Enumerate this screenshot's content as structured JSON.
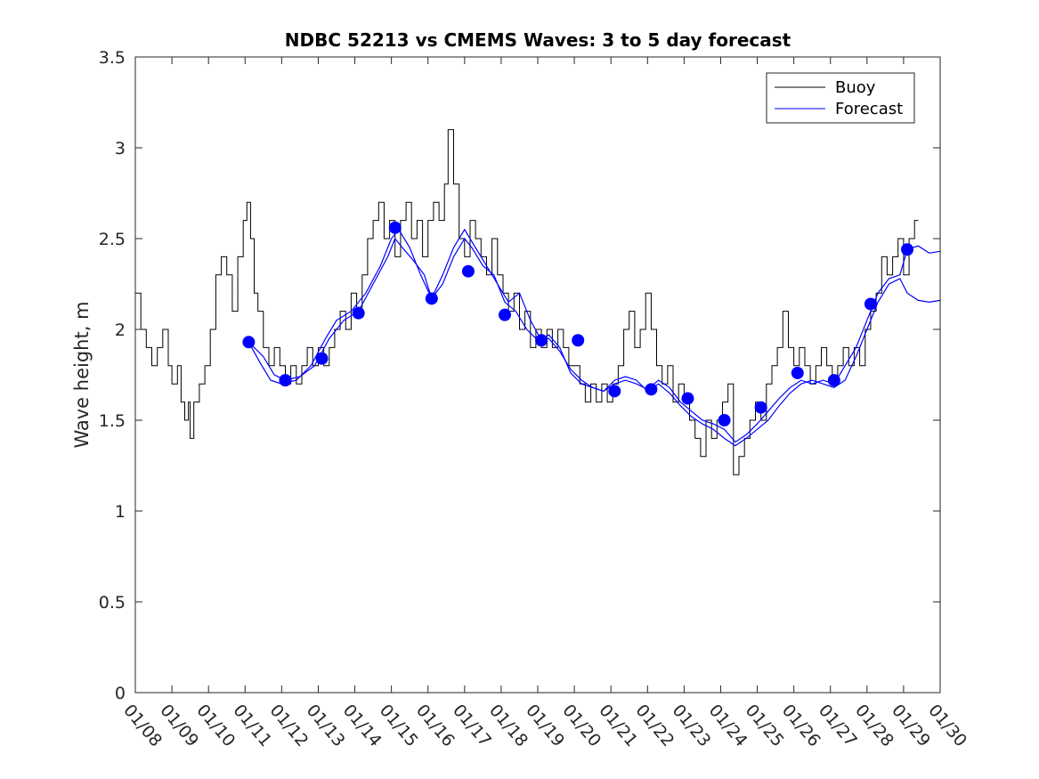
{
  "chart_data": {
    "type": "line",
    "title": "NDBC 52213 vs CMEMS Waves: 3 to 5 day forecast",
    "xlabel": "",
    "ylabel": "Wave height, m",
    "xlim": [
      0,
      22
    ],
    "ylim": [
      0,
      3.5
    ],
    "x_ticks": [
      "01/08",
      "01/09",
      "01/10",
      "01/11",
      "01/12",
      "01/13",
      "01/14",
      "01/15",
      "01/16",
      "01/17",
      "01/18",
      "01/19",
      "01/20",
      "01/21",
      "01/22",
      "01/23",
      "01/24",
      "01/25",
      "01/26",
      "01/27",
      "01/28",
      "01/29",
      "01/30"
    ],
    "y_ticks": [
      "0",
      "0.5",
      "1",
      "1.5",
      "2",
      "2.5",
      "3",
      "3.5"
    ],
    "grid": false,
    "legend": {
      "placement": "top-right",
      "entries": [
        "Buoy",
        "Forecast"
      ]
    },
    "colors": {
      "buoy": "#000000",
      "forecast": "#0000ff"
    },
    "series": [
      {
        "name": "Buoy",
        "x_unit": "days after 01/08 00:00",
        "points": [
          [
            0.0,
            2.2
          ],
          [
            0.15,
            2.0
          ],
          [
            0.3,
            1.9
          ],
          [
            0.45,
            1.8
          ],
          [
            0.6,
            1.9
          ],
          [
            0.75,
            2.0
          ],
          [
            0.9,
            1.8
          ],
          [
            1.0,
            1.7
          ],
          [
            1.15,
            1.8
          ],
          [
            1.25,
            1.6
          ],
          [
            1.35,
            1.5
          ],
          [
            1.45,
            1.6
          ],
          [
            1.5,
            1.4
          ],
          [
            1.6,
            1.6
          ],
          [
            1.75,
            1.7
          ],
          [
            1.9,
            1.8
          ],
          [
            2.05,
            2.0
          ],
          [
            2.2,
            2.3
          ],
          [
            2.35,
            2.4
          ],
          [
            2.5,
            2.3
          ],
          [
            2.65,
            2.1
          ],
          [
            2.8,
            2.4
          ],
          [
            2.95,
            2.6
          ],
          [
            3.05,
            2.7
          ],
          [
            3.15,
            2.5
          ],
          [
            3.25,
            2.2
          ],
          [
            3.35,
            2.1
          ],
          [
            3.5,
            1.9
          ],
          [
            3.65,
            1.8
          ],
          [
            3.8,
            1.9
          ],
          [
            3.95,
            1.8
          ],
          [
            4.1,
            1.7
          ],
          [
            4.25,
            1.8
          ],
          [
            4.4,
            1.7
          ],
          [
            4.55,
            1.8
          ],
          [
            4.7,
            1.9
          ],
          [
            4.85,
            1.8
          ],
          [
            5.0,
            1.9
          ],
          [
            5.15,
            1.8
          ],
          [
            5.3,
            1.9
          ],
          [
            5.45,
            2.0
          ],
          [
            5.6,
            2.1
          ],
          [
            5.75,
            2.0
          ],
          [
            5.9,
            2.2
          ],
          [
            6.05,
            2.1
          ],
          [
            6.2,
            2.3
          ],
          [
            6.35,
            2.5
          ],
          [
            6.5,
            2.6
          ],
          [
            6.65,
            2.7
          ],
          [
            6.8,
            2.5
          ],
          [
            6.95,
            2.6
          ],
          [
            7.1,
            2.4
          ],
          [
            7.25,
            2.6
          ],
          [
            7.4,
            2.7
          ],
          [
            7.55,
            2.5
          ],
          [
            7.7,
            2.6
          ],
          [
            7.85,
            2.4
          ],
          [
            8.0,
            2.6
          ],
          [
            8.15,
            2.7
          ],
          [
            8.3,
            2.6
          ],
          [
            8.45,
            2.8
          ],
          [
            8.55,
            3.1
          ],
          [
            8.7,
            2.8
          ],
          [
            8.85,
            2.5
          ],
          [
            9.0,
            2.4
          ],
          [
            9.15,
            2.6
          ],
          [
            9.3,
            2.5
          ],
          [
            9.45,
            2.4
          ],
          [
            9.6,
            2.3
          ],
          [
            9.75,
            2.5
          ],
          [
            9.9,
            2.3
          ],
          [
            10.05,
            2.2
          ],
          [
            10.2,
            2.1
          ],
          [
            10.35,
            2.2
          ],
          [
            10.5,
            2.0
          ],
          [
            10.65,
            2.1
          ],
          [
            10.8,
            1.9
          ],
          [
            10.95,
            2.0
          ],
          [
            11.1,
            1.9
          ],
          [
            11.25,
            2.0
          ],
          [
            11.4,
            1.9
          ],
          [
            11.55,
            2.0
          ],
          [
            11.7,
            1.9
          ],
          [
            11.85,
            1.8
          ],
          [
            12.0,
            1.8
          ],
          [
            12.15,
            1.7
          ],
          [
            12.3,
            1.6
          ],
          [
            12.45,
            1.7
          ],
          [
            12.6,
            1.6
          ],
          [
            12.75,
            1.7
          ],
          [
            12.9,
            1.6
          ],
          [
            13.05,
            1.7
          ],
          [
            13.2,
            1.8
          ],
          [
            13.35,
            2.0
          ],
          [
            13.5,
            2.1
          ],
          [
            13.65,
            1.9
          ],
          [
            13.8,
            2.0
          ],
          [
            13.95,
            2.2
          ],
          [
            14.1,
            2.0
          ],
          [
            14.25,
            1.8
          ],
          [
            14.4,
            1.7
          ],
          [
            14.55,
            1.8
          ],
          [
            14.7,
            1.6
          ],
          [
            14.85,
            1.7
          ],
          [
            15.0,
            1.6
          ],
          [
            15.15,
            1.5
          ],
          [
            15.3,
            1.4
          ],
          [
            15.45,
            1.3
          ],
          [
            15.6,
            1.5
          ],
          [
            15.75,
            1.4
          ],
          [
            15.9,
            1.5
          ],
          [
            16.05,
            1.6
          ],
          [
            16.2,
            1.7
          ],
          [
            16.35,
            1.2
          ],
          [
            16.5,
            1.3
          ],
          [
            16.65,
            1.4
          ],
          [
            16.8,
            1.5
          ],
          [
            16.95,
            1.6
          ],
          [
            17.1,
            1.5
          ],
          [
            17.25,
            1.7
          ],
          [
            17.4,
            1.8
          ],
          [
            17.55,
            1.9
          ],
          [
            17.7,
            2.1
          ],
          [
            17.85,
            1.9
          ],
          [
            18.0,
            1.8
          ],
          [
            18.15,
            1.9
          ],
          [
            18.3,
            1.8
          ],
          [
            18.45,
            1.7
          ],
          [
            18.6,
            1.8
          ],
          [
            18.75,
            1.9
          ],
          [
            18.9,
            1.8
          ],
          [
            19.05,
            1.7
          ],
          [
            19.2,
            1.8
          ],
          [
            19.35,
            1.9
          ],
          [
            19.5,
            1.8
          ],
          [
            19.65,
            1.9
          ],
          [
            19.8,
            1.8
          ],
          [
            19.95,
            2.0
          ],
          [
            20.1,
            2.1
          ],
          [
            20.25,
            2.2
          ],
          [
            20.4,
            2.4
          ],
          [
            20.55,
            2.3
          ],
          [
            20.7,
            2.4
          ],
          [
            20.85,
            2.5
          ],
          [
            21.0,
            2.3
          ],
          [
            21.15,
            2.5
          ],
          [
            21.3,
            2.6
          ],
          [
            21.4,
            2.6
          ]
        ]
      },
      {
        "name": "Forecast",
        "x_unit": "days after 01/08 00:00",
        "points": [
          [
            3.1,
            1.93
          ],
          [
            3.5,
            1.85
          ],
          [
            3.8,
            1.75
          ],
          [
            4.1,
            1.72
          ],
          [
            4.5,
            1.74
          ],
          [
            4.9,
            1.8
          ],
          [
            5.3,
            1.95
          ],
          [
            5.7,
            2.05
          ],
          [
            6.1,
            2.1
          ],
          [
            6.5,
            2.25
          ],
          [
            6.9,
            2.4
          ],
          [
            7.1,
            2.5
          ],
          [
            7.3,
            2.45
          ],
          [
            7.6,
            2.38
          ],
          [
            7.9,
            2.3
          ],
          [
            8.1,
            2.17
          ],
          [
            8.4,
            2.25
          ],
          [
            8.7,
            2.4
          ],
          [
            9.0,
            2.5
          ],
          [
            9.2,
            2.45
          ],
          [
            9.5,
            2.35
          ],
          [
            9.8,
            2.3
          ],
          [
            10.1,
            2.15
          ],
          [
            10.4,
            2.1
          ],
          [
            10.7,
            2.0
          ],
          [
            11.0,
            1.94
          ],
          [
            11.3,
            1.95
          ],
          [
            11.6,
            1.88
          ],
          [
            11.9,
            1.78
          ],
          [
            12.2,
            1.72
          ],
          [
            12.5,
            1.68
          ],
          [
            12.8,
            1.66
          ],
          [
            13.1,
            1.7
          ],
          [
            13.4,
            1.72
          ],
          [
            13.7,
            1.7
          ],
          [
            14.0,
            1.67
          ],
          [
            14.3,
            1.72
          ],
          [
            14.6,
            1.68
          ],
          [
            14.9,
            1.6
          ],
          [
            15.2,
            1.55
          ],
          [
            15.5,
            1.5
          ],
          [
            15.8,
            1.48
          ],
          [
            16.1,
            1.45
          ],
          [
            16.4,
            1.38
          ],
          [
            16.7,
            1.42
          ],
          [
            17.0,
            1.48
          ],
          [
            17.3,
            1.55
          ],
          [
            17.6,
            1.62
          ],
          [
            17.9,
            1.68
          ],
          [
            18.2,
            1.72
          ],
          [
            18.5,
            1.7
          ],
          [
            18.8,
            1.72
          ],
          [
            19.1,
            1.7
          ],
          [
            19.4,
            1.8
          ],
          [
            19.7,
            1.9
          ],
          [
            20.0,
            2.05
          ],
          [
            20.3,
            2.2
          ],
          [
            20.6,
            2.28
          ],
          [
            20.9,
            2.3
          ],
          [
            21.1,
            2.44
          ],
          [
            21.4,
            2.46
          ],
          [
            21.7,
            2.42
          ],
          [
            22.0,
            2.43
          ]
        ]
      },
      {
        "name": "",
        "x_unit": "days after 01/08 00:00",
        "points": [
          [
            3.1,
            1.93
          ],
          [
            3.4,
            1.82
          ],
          [
            3.7,
            1.72
          ],
          [
            4.0,
            1.7
          ],
          [
            4.4,
            1.72
          ],
          [
            4.8,
            1.8
          ],
          [
            5.2,
            1.95
          ],
          [
            5.5,
            2.05
          ],
          [
            5.9,
            2.1
          ],
          [
            6.3,
            2.2
          ],
          [
            6.7,
            2.35
          ],
          [
            7.0,
            2.5
          ],
          [
            7.2,
            2.55
          ],
          [
            7.5,
            2.45
          ],
          [
            7.8,
            2.3
          ],
          [
            8.1,
            2.17
          ],
          [
            8.4,
            2.3
          ],
          [
            8.7,
            2.45
          ],
          [
            9.0,
            2.55
          ],
          [
            9.3,
            2.45
          ],
          [
            9.6,
            2.35
          ],
          [
            9.9,
            2.25
          ],
          [
            10.2,
            2.15
          ],
          [
            10.5,
            2.2
          ],
          [
            10.8,
            2.05
          ],
          [
            11.1,
            1.94
          ],
          [
            11.3,
            1.97
          ],
          [
            11.6,
            1.9
          ],
          [
            11.9,
            1.76
          ],
          [
            12.2,
            1.7
          ],
          [
            12.5,
            1.68
          ],
          [
            12.8,
            1.66
          ],
          [
            13.1,
            1.72
          ],
          [
            13.4,
            1.74
          ],
          [
            13.7,
            1.72
          ],
          [
            14.0,
            1.66
          ],
          [
            14.3,
            1.7
          ],
          [
            14.6,
            1.65
          ],
          [
            14.9,
            1.58
          ],
          [
            15.2,
            1.52
          ],
          [
            15.5,
            1.48
          ],
          [
            15.8,
            1.45
          ],
          [
            16.1,
            1.4
          ],
          [
            16.4,
            1.36
          ],
          [
            16.7,
            1.4
          ],
          [
            17.0,
            1.45
          ],
          [
            17.3,
            1.5
          ],
          [
            17.6,
            1.58
          ],
          [
            17.9,
            1.65
          ],
          [
            18.2,
            1.7
          ],
          [
            18.5,
            1.72
          ],
          [
            18.8,
            1.7
          ],
          [
            19.1,
            1.68
          ],
          [
            19.4,
            1.72
          ],
          [
            19.7,
            1.85
          ],
          [
            20.0,
            2.0
          ],
          [
            20.3,
            2.15
          ],
          [
            20.6,
            2.25
          ],
          [
            20.9,
            2.28
          ],
          [
            21.1,
            2.2
          ],
          [
            21.4,
            2.16
          ],
          [
            21.7,
            2.15
          ],
          [
            22.0,
            2.16
          ]
        ]
      },
      {
        "name": "",
        "type": "scatter",
        "x_unit": "days after 01/08 00:00",
        "points": [
          [
            3.1,
            1.93
          ],
          [
            4.1,
            1.72
          ],
          [
            5.1,
            1.84
          ],
          [
            6.1,
            2.09
          ],
          [
            7.1,
            2.56
          ],
          [
            8.1,
            2.17
          ],
          [
            9.1,
            2.32
          ],
          [
            10.1,
            2.08
          ],
          [
            11.1,
            1.94
          ],
          [
            12.1,
            1.94
          ],
          [
            13.1,
            1.66
          ],
          [
            14.1,
            1.67
          ],
          [
            15.1,
            1.62
          ],
          [
            16.1,
            1.5
          ],
          [
            17.1,
            1.57
          ],
          [
            18.1,
            1.76
          ],
          [
            19.1,
            1.72
          ],
          [
            20.1,
            2.14
          ],
          [
            21.1,
            2.44
          ]
        ]
      }
    ]
  }
}
